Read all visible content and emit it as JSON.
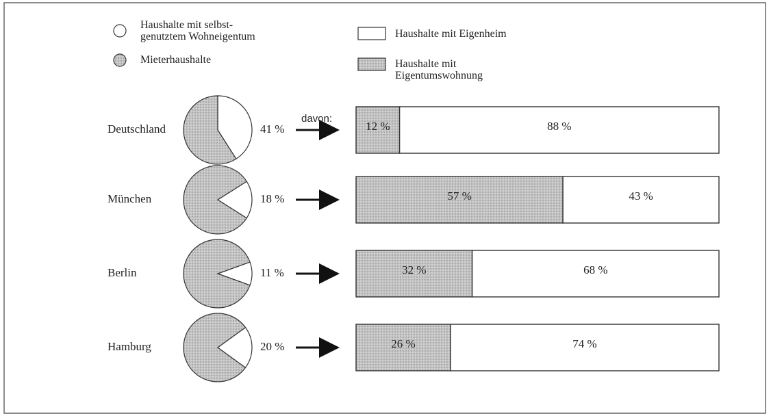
{
  "chart_data": [
    {
      "type": "pie",
      "categories": [
        "Deutschland",
        "München",
        "Berlin",
        "Hamburg"
      ],
      "series": [
        {
          "name": "Haushalte mit selbst-\ngenutztem Wohneigentum",
          "color": "#ffffff",
          "values": [
            41,
            18,
            11,
            20
          ],
          "value_labels": [
            "41 %",
            "18 %",
            "11 %",
            "20 %"
          ]
        },
        {
          "name": "Mieterhaushalte",
          "color": "#c4c4c4",
          "values": [
            59,
            82,
            89,
            80
          ]
        }
      ],
      "annotation": "davon:"
    },
    {
      "type": "bar",
      "series": [
        {
          "name": "Haushalte mit\nEigentumswohnung",
          "color": "#c4c4c4",
          "values": [
            12,
            57,
            32,
            26
          ],
          "value_labels": [
            "12 %",
            "57 %",
            "32 %",
            "26 %"
          ]
        },
        {
          "name": "Haushalte mit Eigenheim",
          "color": "#ffffff",
          "values": [
            88,
            43,
            68,
            74
          ],
          "value_labels": [
            "88 %",
            "43 %",
            "68 %",
            "74 %"
          ]
        }
      ],
      "xlim": [
        0,
        100
      ]
    }
  ]
}
